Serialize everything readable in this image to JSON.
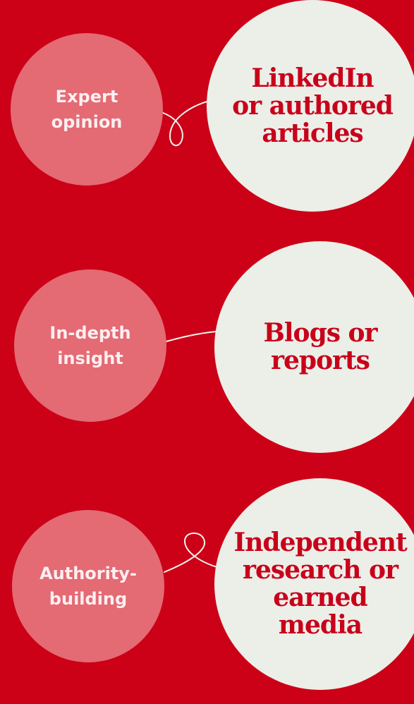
{
  "colors": {
    "background": "#cc0017",
    "small_circle": "#e46a74",
    "small_text": "#fdeff0",
    "large_circle": "#eceee8",
    "large_text": "#c8001a",
    "connector": "#f4f4f0"
  },
  "rows": [
    {
      "purpose": "Expert\nopinion",
      "format": "LinkedIn\nor authored\narticles",
      "connector": "loop-below"
    },
    {
      "purpose": "In-depth\ninsight",
      "format": "Blogs or\nreports",
      "connector": "curve"
    },
    {
      "purpose": "Authority-\nbuilding",
      "format": "Independent\nresearch or\nearned media",
      "connector": "loop-above"
    }
  ]
}
